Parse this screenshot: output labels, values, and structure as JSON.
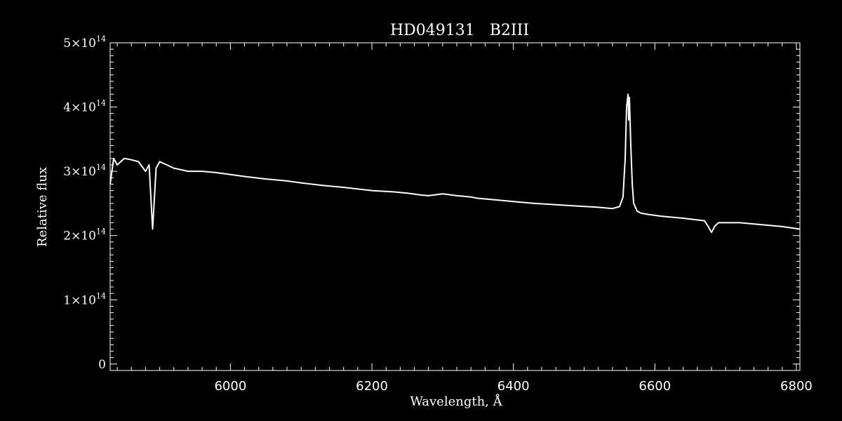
{
  "chart_data": {
    "type": "line",
    "title": "HD049131   B2III",
    "xlabel": "Wavelength, Å",
    "ylabel": "Relative flux",
    "xlim": [
      5830,
      6805
    ],
    "ylim": [
      -10000000000000.0,
      500000000000000.0
    ],
    "x_ticks": [
      6000,
      6200,
      6400,
      6600,
      6800
    ],
    "x_tick_labels": [
      "6000",
      "6200",
      "6400",
      "6600",
      "6800"
    ],
    "y_ticks": [
      0,
      100000000000000.0,
      200000000000000.0,
      300000000000000.0,
      400000000000000.0,
      500000000000000.0
    ],
    "y_tick_labels": [
      {
        "mantissa": "0",
        "exponent": ""
      },
      {
        "mantissa": "1×10",
        "exponent": "14"
      },
      {
        "mantissa": "2×10",
        "exponent": "14"
      },
      {
        "mantissa": "3×10",
        "exponent": "14"
      },
      {
        "mantissa": "4×10",
        "exponent": "14"
      },
      {
        "mantissa": "5×10",
        "exponent": "14"
      }
    ],
    "grid": false,
    "line_color": "#ffffff",
    "background": "#000000",
    "series": [
      {
        "x": [
          5830,
          5835,
          5840,
          5845,
          5850,
          5860,
          5870,
          5880,
          5885,
          5890,
          5895,
          5900,
          5910,
          5920,
          5940,
          5960,
          5980,
          6000,
          6020,
          6050,
          6080,
          6100,
          6130,
          6160,
          6200,
          6230,
          6250,
          6270,
          6280,
          6300,
          6320,
          6340,
          6350,
          6370,
          6400,
          6430,
          6460,
          6490,
          6520,
          6540,
          6550,
          6555,
          6558,
          6560,
          6562,
          6563,
          6564,
          6566,
          6568,
          6570,
          6575,
          6580,
          6590,
          6610,
          6640,
          6670,
          6675,
          6680,
          6685,
          6690,
          6720,
          6750,
          6780,
          6805
        ],
        "y": [
          280000000000000.0,
          320000000000000.0,
          310000000000000.0,
          315000000000000.0,
          320000000000000.0,
          318000000000000.0,
          315000000000000.0,
          300000000000000.0,
          310000000000000.0,
          210000000000000.0,
          305000000000000.0,
          315000000000000.0,
          310000000000000.0,
          305000000000000.0,
          300000000000000.0,
          300000000000000.0,
          298000000000000.0,
          295000000000000.0,
          292000000000000.0,
          288000000000000.0,
          285000000000000.0,
          282000000000000.0,
          278000000000000.0,
          275000000000000.0,
          270000000000000.0,
          268000000000000.0,
          266000000000000.0,
          263000000000000.0,
          262000000000000.0,
          265000000000000.0,
          262000000000000.0,
          260000000000000.0,
          258000000000000.0,
          256000000000000.0,
          253000000000000.0,
          250000000000000.0,
          248000000000000.0,
          246000000000000.0,
          244000000000000.0,
          242000000000000.0,
          245000000000000.0,
          260000000000000.0,
          320000000000000.0,
          400000000000000.0,
          420000000000000.0,
          380000000000000.0,
          415000000000000.0,
          340000000000000.0,
          280000000000000.0,
          250000000000000.0,
          238000000000000.0,
          235000000000000.0,
          233000000000000.0,
          230000000000000.0,
          227000000000000.0,
          223000000000000.0,
          215000000000000.0,
          205000000000000.0,
          215000000000000.0,
          220000000000000.0,
          220000000000000.0,
          217000000000000.0,
          214000000000000.0,
          210000000000000.0
        ]
      }
    ]
  }
}
